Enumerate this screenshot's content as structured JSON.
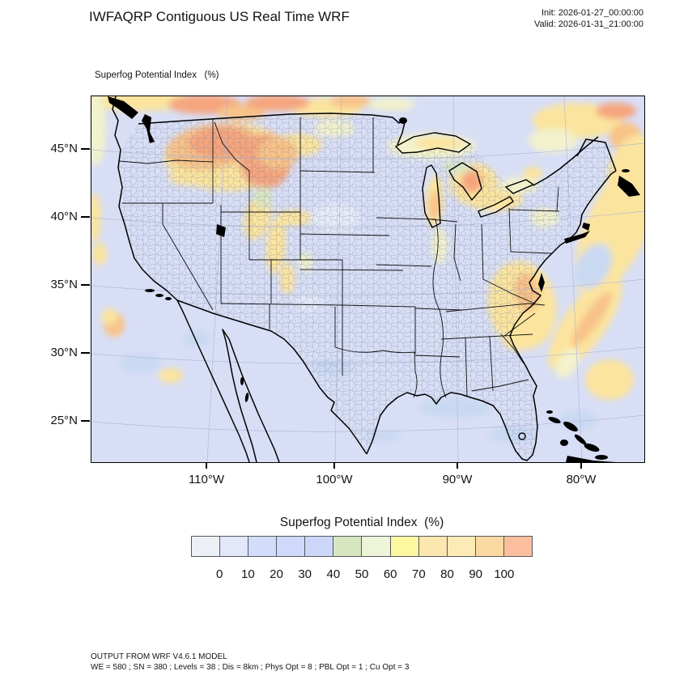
{
  "header": {
    "title": "IWFAQRP Contiguous US Real Time WRF",
    "init": "Init: 2026-01-27_00:00:00",
    "valid": "Valid: 2026-01-31_21:00:00"
  },
  "map": {
    "field_label": "Superfog Potential Index   (%)",
    "lat_ticks": [
      "45°N",
      "40°N",
      "35°N",
      "30°N",
      "25°N"
    ],
    "lon_ticks": [
      "110°W",
      "100°W",
      "90°W",
      "80°W"
    ]
  },
  "legend": {
    "title": "Superfog Potential Index  (%)",
    "tick_labels": [
      "0",
      "10",
      "20",
      "30",
      "40",
      "50",
      "60",
      "70",
      "80",
      "90",
      "100"
    ],
    "colors": [
      "#edf1f6",
      "#e2e7fa",
      "#d3dcfa",
      "#cfd9fa",
      "#cdd7fa",
      "#d8e6c0",
      "#eef4d8",
      "#fdf7a0",
      "#fde7b0",
      "#fdeab6",
      "#fbd9a2",
      "#fbbf9d"
    ]
  },
  "footer": {
    "line1": "OUTPUT FROM WRF V4.6.1 MODEL",
    "line2": "WE = 580 ; SN = 380 ; Levels = 38 ; Dis = 8km ; Phys Opt = 8 ; PBL Opt = 1 ; Cu Opt = 3"
  },
  "chart_data": {
    "type": "heatmap",
    "title": "Superfog Potential Index (%)",
    "units": "%",
    "value_range": [
      0,
      100
    ],
    "colorbar_ticks": [
      0,
      10,
      20,
      30,
      40,
      50,
      60,
      70,
      80,
      90,
      100
    ],
    "colorbar_colors": [
      "#edf1f6",
      "#e2e7fa",
      "#d3dcfa",
      "#cfd9fa",
      "#cdd7fa",
      "#d8e6c0",
      "#eef4d8",
      "#fdf7a0",
      "#fde7b0",
      "#fdeab6",
      "#fbd9a2",
      "#fbbf9d"
    ],
    "lat_ticks_deg_n": [
      45,
      40,
      35,
      30,
      25
    ],
    "lon_ticks_deg_w": [
      110,
      100,
      90,
      80
    ],
    "init_time": "2026-01-27_00:00:00",
    "valid_time": "2026-01-31_21:00:00",
    "high_value_regions": [
      {
        "region": "Eastern Washington, Idaho panhandle, western Montana",
        "approx_value_pct": "60-100"
      },
      {
        "region": "Southern British Columbia / Canadian Rockies along north edge",
        "approx_value_pct": "50-100"
      },
      {
        "region": "Wyoming, Utah and Colorado mountain ranges",
        "approx_value_pct": "40-70"
      },
      {
        "region": "Georgia / South Carolina / western North Carolina",
        "approx_value_pct": "40-70"
      },
      {
        "region": "Atlantic waters offshore of the East Coast (Gulf Stream band)",
        "approx_value_pct": "40-80"
      },
      {
        "region": "Lakes Michigan and Huron and nearby shorelines",
        "approx_value_pct": "50-90"
      },
      {
        "region": "Remainder of CONUS interior",
        "approx_value_pct": "0-30"
      }
    ]
  }
}
